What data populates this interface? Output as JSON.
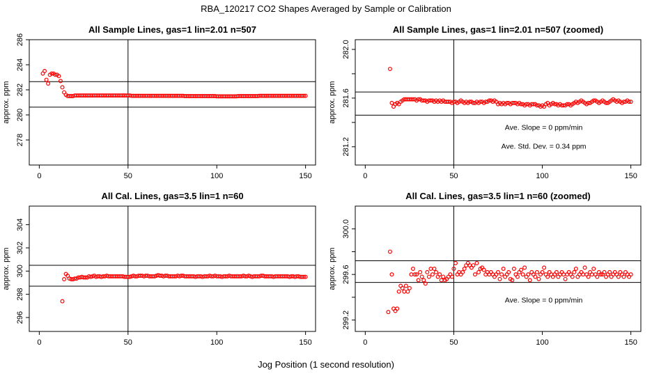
{
  "page": {
    "title": "RBA_120217  CO2 Shapes Averaged by Sample or Calibration",
    "xlabel": "Jog Position (1 second resolution)"
  },
  "colors": {
    "points": "#ff0000",
    "lines": "#000000"
  },
  "chart_data": [
    {
      "type": "scatter",
      "title": "All Sample Lines, gas=1 lin=2.01 n=507",
      "ylabel": "approx. ppm",
      "xlim": [
        0,
        150
      ],
      "ylim": [
        276,
        286
      ],
      "xticks": [
        0,
        50,
        100,
        150
      ],
      "yticks": [
        278,
        280,
        282,
        284,
        286
      ],
      "ytick_labels": [
        "278",
        "280",
        "282",
        "284",
        "286"
      ],
      "hlines": [
        282.65,
        280.62
      ],
      "vline": 50,
      "annotations": [],
      "x_start": 2,
      "y": [
        283.3,
        283.5,
        282.8,
        282.5,
        283.2,
        283.3,
        283.3,
        283.2,
        283.2,
        283.1,
        282.7,
        282.2,
        281.8,
        281.6,
        281.5,
        281.5,
        281.5,
        281.5,
        281.55,
        281.55,
        281.55,
        281.55,
        281.55,
        281.55,
        281.55,
        281.55,
        281.55,
        281.55,
        281.55,
        281.55,
        281.55,
        281.55,
        281.55,
        281.55,
        281.55,
        281.55,
        281.55,
        281.55,
        281.55,
        281.55,
        281.55,
        281.55,
        281.55,
        281.55,
        281.55,
        281.55,
        281.55,
        281.55,
        281.55,
        281.55,
        281.52,
        281.52,
        281.52,
        281.52,
        281.52,
        281.52,
        281.52,
        281.52,
        281.52,
        281.52,
        281.52,
        281.52,
        281.52,
        281.52,
        281.52,
        281.52,
        281.52,
        281.52,
        281.52,
        281.52,
        281.52,
        281.52,
        281.52,
        281.52,
        281.52,
        281.52,
        281.52,
        281.52,
        281.52,
        281.52,
        281.5,
        281.5,
        281.5,
        281.5,
        281.5,
        281.5,
        281.5,
        281.5,
        281.5,
        281.5,
        281.5,
        281.5,
        281.5,
        281.5,
        281.5,
        281.5,
        281.5,
        281.5,
        281.48,
        281.48,
        281.48,
        281.48,
        281.48,
        281.48,
        281.48,
        281.48,
        281.48,
        281.48,
        281.48,
        281.48,
        281.5,
        281.5,
        281.5,
        281.5,
        281.5,
        281.5,
        281.5,
        281.5,
        281.5,
        281.5,
        281.5,
        281.5,
        281.52,
        281.52,
        281.52,
        281.52,
        281.52,
        281.52,
        281.52,
        281.52,
        281.52,
        281.52,
        281.52,
        281.52,
        281.52,
        281.52,
        281.52,
        281.52,
        281.52,
        281.52,
        281.52,
        281.52,
        281.52,
        281.52,
        281.52,
        281.52,
        281.52,
        281.52,
        281.52,
        281.52,
        281.52
      ]
    },
    {
      "type": "scatter",
      "title": "All Sample Lines, gas=1 lin=2.01 n=507 (zoomed)",
      "ylabel": "approx. ppm",
      "xlim": [
        0,
        150
      ],
      "ylim": [
        281.05,
        282.08
      ],
      "xticks": [
        0,
        50,
        100,
        150
      ],
      "yticks": [
        281.2,
        281.4,
        281.6,
        281.8,
        282.0
      ],
      "ytick_labels": [
        "281.2",
        "",
        "281.6",
        "",
        "282.0"
      ],
      "hlines": [
        281.65,
        281.46
      ],
      "vline": 50,
      "annotations": [
        "Ave. Slope =  0  ppm/min",
        "Ave. Std. Dev. =  0.34  ppm"
      ],
      "x_start": 14,
      "y": [
        281.84,
        281.56,
        281.53,
        281.55,
        281.56,
        281.55,
        281.57,
        281.58,
        281.59,
        281.59,
        281.59,
        281.59,
        281.59,
        281.59,
        281.59,
        281.58,
        281.59,
        281.59,
        281.58,
        281.58,
        281.58,
        281.57,
        281.58,
        281.58,
        281.58,
        281.57,
        281.58,
        281.57,
        281.58,
        281.57,
        281.58,
        281.57,
        281.57,
        281.57,
        281.57,
        281.56,
        281.57,
        281.57,
        281.56,
        281.57,
        281.58,
        281.57,
        281.56,
        281.57,
        281.56,
        281.57,
        281.57,
        281.56,
        281.56,
        281.57,
        281.56,
        281.57,
        281.57,
        281.56,
        281.57,
        281.57,
        281.58,
        281.58,
        281.57,
        281.58,
        281.57,
        281.55,
        281.56,
        281.55,
        281.56,
        281.55,
        281.56,
        281.56,
        281.55,
        281.56,
        281.56,
        281.56,
        281.55,
        281.56,
        281.55,
        281.55,
        281.54,
        281.55,
        281.55,
        281.54,
        281.55,
        281.55,
        281.55,
        281.54,
        281.54,
        281.53,
        281.54,
        281.53,
        281.55,
        281.56,
        281.54,
        281.55,
        281.56,
        281.55,
        281.55,
        281.54,
        281.55,
        281.54,
        281.54,
        281.54,
        281.55,
        281.55,
        281.54,
        281.55,
        281.56,
        281.57,
        281.56,
        281.57,
        281.58,
        281.57,
        281.56,
        281.55,
        281.56,
        281.56,
        281.57,
        281.58,
        281.58,
        281.57,
        281.56,
        281.57,
        281.58,
        281.57,
        281.56,
        281.56,
        281.57,
        281.58,
        281.59,
        281.58,
        281.57,
        281.58,
        281.57,
        281.56,
        281.57,
        281.57,
        281.58,
        281.57,
        281.57,
        281.59
      ]
    },
    {
      "type": "scatter",
      "title": "All Cal. Lines, gas=3.5 lin=1 n=60",
      "ylabel": "approx. ppm",
      "xlim": [
        0,
        150
      ],
      "ylim": [
        294.8,
        305.6
      ],
      "xticks": [
        0,
        50,
        100,
        150
      ],
      "yticks": [
        296,
        298,
        300,
        302,
        304
      ],
      "ytick_labels": [
        "296",
        "298",
        "300",
        "302",
        "304"
      ],
      "hlines": [
        300.5,
        298.7
      ],
      "vline": 50,
      "annotations": [],
      "x_start": 13,
      "y": [
        297.4,
        299.3,
        299.75,
        299.6,
        299.35,
        299.3,
        299.3,
        299.35,
        299.35,
        299.45,
        299.45,
        299.5,
        299.45,
        299.45,
        299.45,
        299.55,
        299.5,
        299.55,
        299.6,
        299.5,
        299.55,
        299.55,
        299.5,
        299.55,
        299.55,
        299.6,
        299.55,
        299.55,
        299.55,
        299.55,
        299.55,
        299.55,
        299.55,
        299.55,
        299.55,
        299.5,
        299.5,
        299.5,
        299.5,
        299.55,
        299.6,
        299.55,
        299.55,
        299.6,
        299.6,
        299.6,
        299.55,
        299.6,
        299.6,
        299.55,
        299.55,
        299.55,
        299.55,
        299.6,
        299.65,
        299.6,
        299.6,
        299.55,
        299.6,
        299.6,
        299.55,
        299.55,
        299.55,
        299.55,
        299.55,
        299.6,
        299.55,
        299.6,
        299.6,
        299.55,
        299.55,
        299.55,
        299.55,
        299.55,
        299.55,
        299.5,
        299.55,
        299.55,
        299.55,
        299.5,
        299.55,
        299.55,
        299.55,
        299.6,
        299.55,
        299.55,
        299.6,
        299.55,
        299.55,
        299.55,
        299.5,
        299.55,
        299.55,
        299.55,
        299.6,
        299.55,
        299.55,
        299.55,
        299.55,
        299.55,
        299.55,
        299.55,
        299.6,
        299.55,
        299.55,
        299.6,
        299.55,
        299.5,
        299.55,
        299.55,
        299.55,
        299.55,
        299.6,
        299.6,
        299.55,
        299.55,
        299.55,
        299.55,
        299.55,
        299.5,
        299.55,
        299.55,
        299.55,
        299.55,
        299.55,
        299.55,
        299.55,
        299.55,
        299.5,
        299.55,
        299.55,
        299.5,
        299.55,
        299.55,
        299.5,
        299.5,
        299.5,
        299.5
      ]
    },
    {
      "type": "scatter",
      "title": "All Cal. Lines, gas=3.5 lin=1 n=60 (zoomed)",
      "ylabel": "approx. ppm",
      "xlim": [
        0,
        150
      ],
      "ylim": [
        299.1,
        300.2
      ],
      "xticks": [
        0,
        50,
        100,
        150
      ],
      "yticks": [
        299.2,
        299.4,
        299.6,
        299.8,
        300.0
      ],
      "ytick_labels": [
        "299.2",
        "",
        "299.6",
        "",
        "300.0"
      ],
      "hlines": [
        299.72,
        299.53
      ],
      "vline": 50,
      "annotations": [
        "Ave. Slope =  0  ppm/min"
      ],
      "x_start": 13,
      "y": [
        299.27,
        299.8,
        299.6,
        299.3,
        299.28,
        299.3,
        299.45,
        299.5,
        299.48,
        299.45,
        299.5,
        299.45,
        299.48,
        299.6,
        299.65,
        299.6,
        299.6,
        299.55,
        299.62,
        299.58,
        299.55,
        299.52,
        299.62,
        299.58,
        299.65,
        299.6,
        299.65,
        299.62,
        299.58,
        299.6,
        299.55,
        299.58,
        299.55,
        299.56,
        299.58,
        299.6,
        299.58,
        299.65,
        299.7,
        299.6,
        299.62,
        299.6,
        299.62,
        299.65,
        299.68,
        299.7,
        299.68,
        299.66,
        299.68,
        299.6,
        299.7,
        299.62,
        299.65,
        299.66,
        299.64,
        299.6,
        299.62,
        299.6,
        299.62,
        299.6,
        299.58,
        299.6,
        299.62,
        299.56,
        299.6,
        299.65,
        299.58,
        299.6,
        299.62,
        299.56,
        299.55,
        299.65,
        299.6,
        299.58,
        299.62,
        299.64,
        299.6,
        299.66,
        299.58,
        299.6,
        299.55,
        299.62,
        299.6,
        299.58,
        299.62,
        299.56,
        299.6,
        299.62,
        299.66,
        299.6,
        299.58,
        299.62,
        299.6,
        299.58,
        299.6,
        299.62,
        299.58,
        299.6,
        299.62,
        299.6,
        299.56,
        299.6,
        299.62,
        299.6,
        299.58,
        299.62,
        299.65,
        299.58,
        299.6,
        299.62,
        299.6,
        299.66,
        299.6,
        299.58,
        299.62,
        299.6,
        299.65,
        299.6,
        299.58,
        299.62,
        299.6,
        299.6,
        299.62,
        299.58,
        299.6,
        299.62,
        299.58,
        299.6,
        299.62,
        299.6,
        299.58,
        299.62,
        299.6,
        299.58,
        299.62,
        299.6,
        299.58,
        299.6
      ]
    }
  ]
}
